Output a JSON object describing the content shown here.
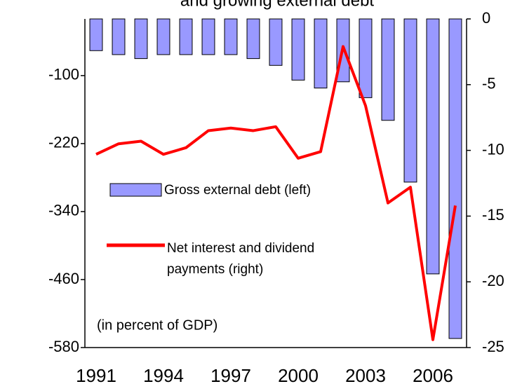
{
  "chart_data": {
    "type": "bar_line",
    "title": "and growing external debt",
    "annotation": "(in percent of GDP)",
    "categories": [
      "1991",
      null,
      null,
      "1994",
      null,
      null,
      "1997",
      null,
      null,
      "2000",
      null,
      null,
      "2003",
      null,
      null,
      "2006",
      null
    ],
    "series": [
      {
        "name": "Gross external debt (left)",
        "type": "bar",
        "color": "#9999ff",
        "axis": "y",
        "values": [
          -56,
          -63,
          -70,
          -63,
          -63,
          -63,
          -63,
          -70,
          -82,
          -108,
          -122,
          -111,
          -139,
          -179,
          -288,
          -450,
          -564
        ]
      },
      {
        "name": [
          "Net interest and dividend",
          "payments (right)"
        ],
        "type": "line",
        "color": "#ff0000",
        "axis": "y2",
        "values": [
          -10.3,
          -9.5,
          -9.3,
          -10.3,
          -9.8,
          -8.5,
          -8.3,
          -8.5,
          -8.2,
          -10.6,
          -10.1,
          -2.1,
          -6.6,
          -14.0,
          -12.8,
          -24.4,
          -14.2
        ]
      }
    ],
    "ylim": [
      -580,
      0
    ],
    "yticks": [
      -100,
      -220,
      -340,
      -460,
      -580
    ],
    "y2lim": [
      -25,
      0
    ],
    "y2ticks": [
      0,
      -5,
      -10,
      -15,
      -20,
      -25
    ]
  }
}
